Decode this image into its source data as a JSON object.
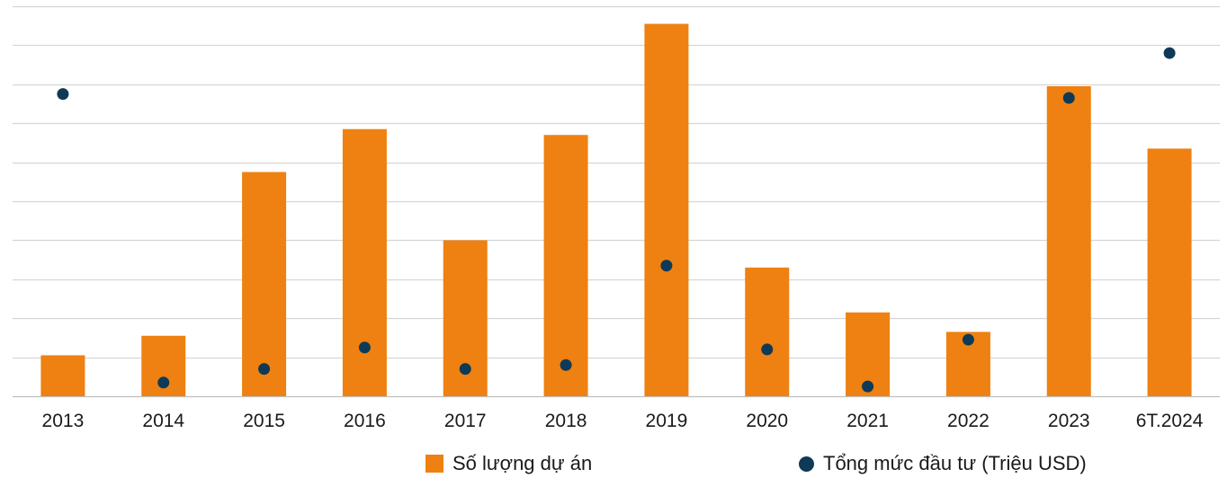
{
  "colors": {
    "bar": "#EE8111",
    "dot": "#0F3A57",
    "grid": "#D6D6D6",
    "axis": "#BFBFBF"
  },
  "chart_data": {
    "type": "bar",
    "categories": [
      "2013",
      "2014",
      "2015",
      "2016",
      "2017",
      "2018",
      "2019",
      "2020",
      "2021",
      "2022",
      "2023",
      "6T.2024"
    ],
    "series": [
      {
        "name": "Số lượng dự án",
        "type": "bar",
        "values": [
          10.5,
          15.5,
          57.5,
          68.5,
          40.0,
          67.0,
          95.5,
          33.0,
          21.5,
          16.5,
          79.5,
          63.5
        ]
      },
      {
        "name": "Tổng mức đầu tư (Triệu USD)",
        "type": "scatter",
        "values": [
          77.5,
          3.5,
          7.0,
          12.5,
          7.0,
          8.0,
          33.5,
          12.0,
          2.5,
          14.5,
          76.5,
          88.0
        ]
      }
    ],
    "ylim": [
      0,
      100
    ],
    "grid": true,
    "legend_position": "bottom-right"
  }
}
